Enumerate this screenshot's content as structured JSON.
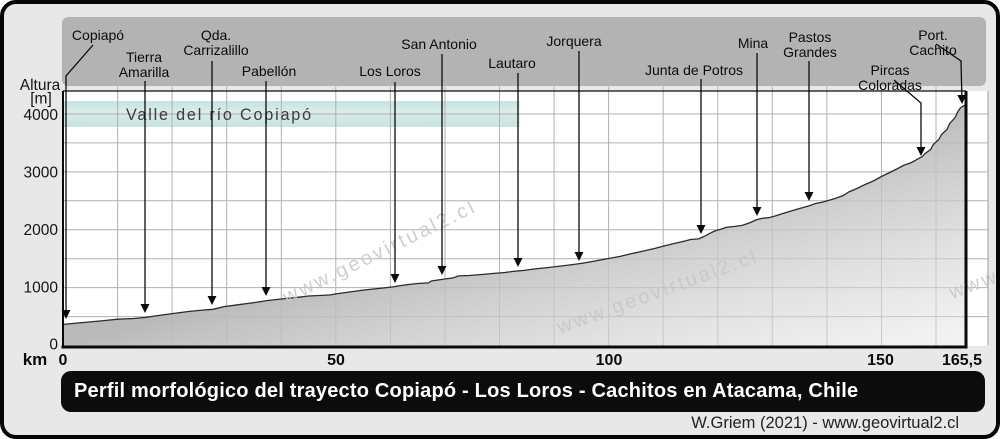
{
  "y_axis": {
    "title_lines": [
      "Altura",
      "[m]"
    ],
    "tick_labels": [
      "4000",
      "3000",
      "2000",
      "1000",
      "0"
    ]
  },
  "x_axis": {
    "unit_label": "km",
    "tick_labels": [
      "0",
      "50",
      "100",
      "150",
      "165,5"
    ]
  },
  "valley_banner": {
    "text": "Valle del río Copiapó"
  },
  "watermark": {
    "text": "www.geovirtual2.cl"
  },
  "title_bar": {
    "text": "Perfil morfológico del trayecto Copiapó - Los Loros - Cachitos en Atacama, Chile"
  },
  "credit": {
    "text": "W.Griem (2021) - www.geovirtual2.cl"
  },
  "chart_data": {
    "type": "area",
    "title": "Perfil morfológico del trayecto Copiapó - Los Loros - Cachitos en Atacama, Chile",
    "xlabel": "km",
    "ylabel": "Altura [m]",
    "xlim": [
      0,
      165.5
    ],
    "ylim": [
      0,
      4300
    ],
    "x_ticks": [
      0,
      50,
      100,
      150,
      165.5
    ],
    "y_ticks": [
      0,
      500,
      1000,
      1500,
      2000,
      2500,
      3000,
      3500,
      4000
    ],
    "grid": true,
    "profile_km_m": [
      [
        0,
        365
      ],
      [
        2,
        382
      ],
      [
        5,
        408
      ],
      [
        7.5,
        430
      ],
      [
        10,
        455
      ],
      [
        13,
        467
      ],
      [
        15,
        483
      ],
      [
        17.5,
        518
      ],
      [
        20,
        552
      ],
      [
        23,
        588
      ],
      [
        26,
        615
      ],
      [
        27.5,
        625
      ],
      [
        29.5,
        673
      ],
      [
        32,
        703
      ],
      [
        34,
        727
      ],
      [
        36.5,
        762
      ],
      [
        37.5,
        778
      ],
      [
        40,
        803
      ],
      [
        43,
        832
      ],
      [
        45,
        855
      ],
      [
        47.5,
        865
      ],
      [
        49,
        875
      ],
      [
        50,
        892
      ],
      [
        52.5,
        925
      ],
      [
        55,
        958
      ],
      [
        58,
        987
      ],
      [
        60.5,
        1012
      ],
      [
        61.5,
        1030
      ],
      [
        63.5,
        1055
      ],
      [
        65,
        1072
      ],
      [
        67,
        1082
      ],
      [
        67.5,
        1115
      ],
      [
        69.5,
        1142
      ],
      [
        71.5,
        1168
      ],
      [
        72.5,
        1202
      ],
      [
        74.5,
        1210
      ],
      [
        77,
        1228
      ],
      [
        79,
        1245
      ],
      [
        81,
        1262
      ],
      [
        82.5,
        1280
      ],
      [
        84.5,
        1298
      ],
      [
        86.5,
        1323
      ],
      [
        89,
        1348
      ],
      [
        91.5,
        1375
      ],
      [
        93,
        1392
      ],
      [
        95,
        1418
      ],
      [
        97,
        1452
      ],
      [
        99.5,
        1495
      ],
      [
        102,
        1538
      ],
      [
        104,
        1582
      ],
      [
        106,
        1625
      ],
      [
        108.5,
        1677
      ],
      [
        110.5,
        1728
      ],
      [
        112.5,
        1772
      ],
      [
        114,
        1806
      ],
      [
        115,
        1832
      ],
      [
        116.5,
        1842
      ],
      [
        117.5,
        1885
      ],
      [
        118.5,
        1937
      ],
      [
        119.5,
        1980
      ],
      [
        121,
        2022
      ],
      [
        121.5,
        2040
      ],
      [
        123,
        2057
      ],
      [
        124.5,
        2075
      ],
      [
        126,
        2126
      ],
      [
        127,
        2170
      ],
      [
        128,
        2195
      ],
      [
        129.5,
        2212
      ],
      [
        130.5,
        2238
      ],
      [
        132,
        2282
      ],
      [
        133.5,
        2325
      ],
      [
        135,
        2368
      ],
      [
        136,
        2393
      ],
      [
        137,
        2420
      ],
      [
        138,
        2455
      ],
      [
        139,
        2472
      ],
      [
        140,
        2498
      ],
      [
        141.5,
        2540
      ],
      [
        143,
        2592
      ],
      [
        144,
        2653
      ],
      [
        145.5,
        2713
      ],
      [
        147,
        2782
      ],
      [
        148.5,
        2842
      ],
      [
        150,
        2920
      ],
      [
        151.5,
        2990
      ],
      [
        153,
        3058
      ],
      [
        154,
        3110
      ],
      [
        155.5,
        3162
      ],
      [
        156,
        3188
      ],
      [
        156.5,
        3215
      ],
      [
        157.5,
        3265
      ],
      [
        158,
        3318
      ],
      [
        159,
        3386
      ],
      [
        159.5,
        3473
      ],
      [
        160.5,
        3560
      ],
      [
        161,
        3645
      ],
      [
        162,
        3732
      ],
      [
        162.5,
        3835
      ],
      [
        163.5,
        3940
      ],
      [
        164,
        4042
      ],
      [
        164.5,
        4110
      ],
      [
        165.5,
        4165
      ]
    ],
    "places": [
      {
        "label": "Copiapó",
        "km": 0.4,
        "elevation_m": 380,
        "label_cx": 94,
        "label_top": 24,
        "pointer": [
          [
            89,
            41
          ],
          [
            62,
            72
          ],
          [
            62,
            313
          ]
        ]
      },
      {
        "label": "Tierra\nAmarilla",
        "km": 15,
        "elevation_m": 470,
        "label_cx": 140,
        "label_top": 46,
        "pointer": [
          [
            141,
            77
          ],
          [
            141,
            307
          ]
        ]
      },
      {
        "label": "Qda.\nCarrizalillo",
        "km": 27.2,
        "elevation_m": 625,
        "label_cx": 212,
        "label_top": 24,
        "pointer": [
          [
            208,
            57
          ],
          [
            208,
            299
          ]
        ]
      },
      {
        "label": "Pabellón",
        "km": 37,
        "elevation_m": 775,
        "label_cx": 265,
        "label_top": 60,
        "pointer": [
          [
            262,
            77
          ],
          [
            262,
            290
          ]
        ]
      },
      {
        "label": "Los Loros",
        "km": 60.7,
        "elevation_m": 1010,
        "label_cx": 386,
        "label_top": 60,
        "pointer": [
          [
            391,
            78
          ],
          [
            391,
            277
          ]
        ]
      },
      {
        "label": "San Antonio",
        "km": 69.4,
        "elevation_m": 1140,
        "label_cx": 435,
        "label_top": 33,
        "pointer": [
          [
            438,
            50
          ],
          [
            438,
            269
          ]
        ]
      },
      {
        "label": "Lautaro",
        "km": 83.3,
        "elevation_m": 1290,
        "label_cx": 508,
        "label_top": 52,
        "pointer": [
          [
            514,
            69
          ],
          [
            514,
            261
          ]
        ]
      },
      {
        "label": "Jorquera",
        "km": 94.5,
        "elevation_m": 1390,
        "label_cx": 570,
        "label_top": 30,
        "pointer": [
          [
            575,
            47
          ],
          [
            575,
            255
          ]
        ]
      },
      {
        "label": "Junta de Potros",
        "km": 116.9,
        "elevation_m": 1850,
        "label_cx": 690,
        "label_top": 59,
        "pointer": [
          [
            697,
            75
          ],
          [
            697,
            228
          ]
        ]
      },
      {
        "label": "Mina",
        "km": 127.2,
        "elevation_m": 2200,
        "label_cx": 749,
        "label_top": 32,
        "pointer": [
          [
            753,
            49
          ],
          [
            753,
            210
          ]
        ]
      },
      {
        "label": "Pastos\nGrandes",
        "km": 136.7,
        "elevation_m": 2430,
        "label_cx": 806,
        "label_top": 26,
        "pointer": [
          [
            805,
            57
          ],
          [
            805,
            195
          ]
        ]
      },
      {
        "label": "Pircas Coloradas",
        "km": 157.2,
        "elevation_m": 3270,
        "label_cx": 886,
        "label_top": 59,
        "pointer": [
          [
            890,
            76
          ],
          [
            917,
            99
          ],
          [
            917,
            150
          ]
        ]
      },
      {
        "label": "Port. Cachito",
        "km": 164.8,
        "elevation_m": 4110,
        "label_cx": 929,
        "label_top": 24,
        "pointer": [
          [
            932,
            40
          ],
          [
            957,
            57
          ],
          [
            958,
            98
          ]
        ]
      }
    ],
    "colors": {
      "profile_fill_dark": "#9f9f9f",
      "profile_fill_light": "#e6e6e6",
      "label_band": "#b3b3b3",
      "valley_band": "#cde7e3",
      "grid": "#b0b0b0",
      "background": "#e8e8e8",
      "frame": "#0a0a0a"
    }
  }
}
